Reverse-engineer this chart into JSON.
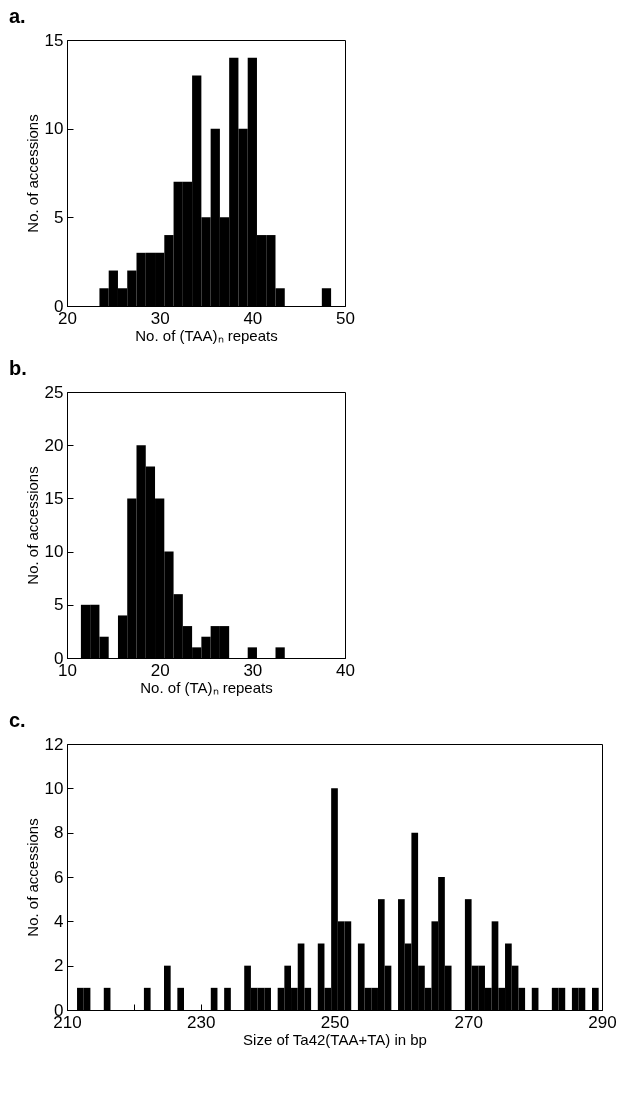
{
  "chart_data": [
    {
      "type": "histogram",
      "title": "a.",
      "xlabel": "No. of (TAA)ₙ repeats",
      "ylabel": "No. of accessions",
      "color": "#000000",
      "bins": [
        23.5,
        24.5,
        25.5,
        26.5,
        27.5,
        28.5,
        29.5,
        30.5,
        31.5,
        32.5,
        33.5,
        34.5,
        35.5,
        36.5,
        37.5,
        38.5,
        39.5,
        40.5,
        41.5,
        42.5,
        43.5,
        44.5,
        45.5,
        46.5,
        47.5,
        48.5
      ],
      "values": [
        1,
        2,
        1,
        2,
        3,
        3,
        3,
        4,
        7,
        7,
        13,
        5,
        10,
        5,
        14,
        10,
        14,
        4,
        4,
        1,
        0,
        0,
        0,
        0,
        1
      ],
      "xlim": [
        20,
        50
      ],
      "xticks": [
        20,
        30,
        40,
        50
      ],
      "ylim": [
        0,
        15
      ],
      "yticks": [
        0,
        5,
        10,
        15
      ]
    },
    {
      "type": "histogram",
      "title": "b.",
      "xlabel": "No. of (TA)ₙ repeats",
      "ylabel": "No. of accessions",
      "color": "#000000",
      "bins": [
        11.5,
        12.5,
        13.5,
        14.5,
        15.5,
        16.5,
        17.5,
        18.5,
        19.5,
        20.5,
        21.5,
        22.5,
        23.5,
        24.5,
        25.5,
        26.5,
        27.5,
        28.5,
        29.5,
        30.5,
        31.5,
        32.5,
        33.5
      ],
      "values": [
        5,
        5,
        2,
        0,
        4,
        15,
        20,
        18,
        15,
        10,
        6,
        3,
        1,
        2,
        3,
        3,
        0,
        0,
        1,
        0,
        0,
        1
      ],
      "xlim": [
        10,
        40
      ],
      "xticks": [
        10,
        20,
        30,
        40
      ],
      "ylim": [
        0,
        25
      ],
      "yticks": [
        0,
        5,
        10,
        15,
        20,
        25
      ]
    },
    {
      "type": "histogram",
      "title": "c.",
      "xlabel": "Size of Ta42(TAA+TA) in bp",
      "ylabel": "No. of accessions",
      "color": "#000000",
      "bins": [
        211.5,
        212.5,
        213.5,
        214.5,
        215.5,
        216.5,
        217.5,
        218.5,
        219.5,
        220.5,
        221.5,
        222.5,
        223.5,
        224.5,
        225.5,
        226.5,
        227.5,
        228.5,
        229.5,
        230.5,
        231.5,
        232.5,
        233.5,
        234.5,
        235.5,
        236.5,
        237.5,
        238.5,
        239.5,
        240.5,
        241.5,
        242.5,
        243.5,
        244.5,
        245.5,
        246.5,
        247.5,
        248.5,
        249.5,
        250.5,
        251.5,
        252.5,
        253.5,
        254.5,
        255.5,
        256.5,
        257.5,
        258.5,
        259.5,
        260.5,
        261.5,
        262.5,
        263.5,
        264.5,
        265.5,
        266.5,
        267.5,
        268.5,
        269.5,
        270.5,
        271.5,
        272.5,
        273.5,
        274.5,
        275.5,
        276.5,
        277.5,
        278.5,
        279.5,
        280.5,
        281.5,
        282.5,
        283.5,
        284.5,
        285.5,
        286.5,
        287.5,
        288.5,
        289.5
      ],
      "values": [
        1,
        1,
        0,
        0,
        1,
        0,
        0,
        0,
        0,
        0,
        1,
        0,
        0,
        2,
        0,
        1,
        0,
        0,
        0,
        0,
        1,
        0,
        1,
        0,
        0,
        2,
        1,
        1,
        1,
        0,
        1,
        2,
        1,
        3,
        1,
        0,
        3,
        1,
        10,
        4,
        4,
        0,
        3,
        1,
        1,
        5,
        2,
        0,
        5,
        3,
        8,
        2,
        1,
        4,
        6,
        2,
        0,
        0,
        5,
        2,
        2,
        1,
        4,
        1,
        3,
        2,
        1,
        0,
        1,
        0,
        0,
        1,
        1,
        0,
        1,
        1,
        0,
        1
      ],
      "xlim": [
        210,
        290
      ],
      "xticks": [
        210,
        {
          "value": 220,
          "label": null
        },
        230,
        {
          "value": 240,
          "label": null
        },
        250,
        {
          "value": 260,
          "label": null
        },
        270,
        {
          "value": 280,
          "label": null
        },
        290
      ],
      "ylim": [
        0,
        12
      ],
      "yticks": [
        0,
        2,
        4,
        6,
        8,
        10,
        12
      ]
    }
  ]
}
